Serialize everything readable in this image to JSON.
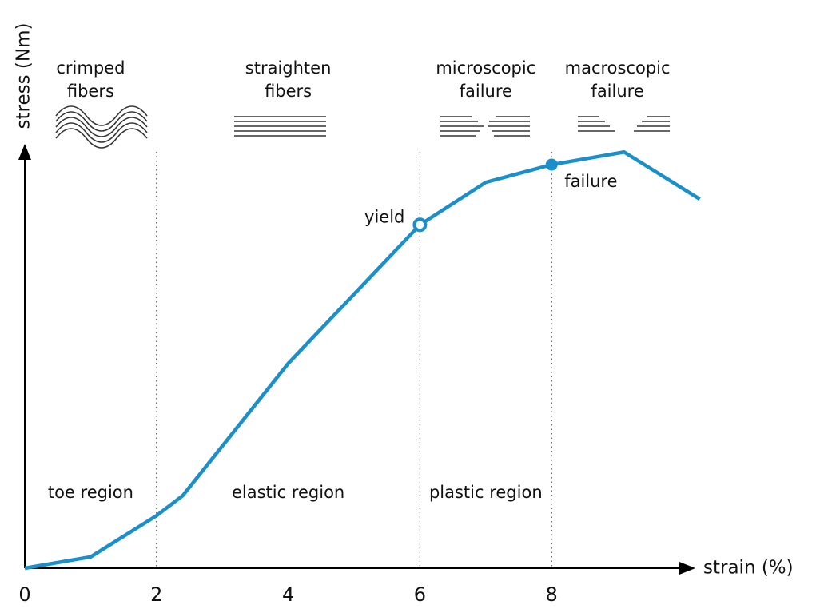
{
  "chart_data": {
    "type": "line",
    "x_label": "strain (%)",
    "y_label": "stress (Nm)",
    "x": [
      0,
      1,
      2,
      2.4,
      4,
      6,
      7,
      8,
      9.1,
      10.25
    ],
    "values": [
      0,
      2.7,
      12.5,
      17.3,
      48.7,
      81.7,
      91.8,
      96,
      99,
      87.8
    ],
    "color": "#1b8fca",
    "xlim": [
      0,
      10
    ],
    "ylim": [
      0,
      100
    ],
    "xticks": [
      0,
      2,
      4,
      6,
      8
    ],
    "boundaries": [
      2,
      6,
      8
    ],
    "regions": [
      "toe region",
      "elastic region",
      "plastic region"
    ],
    "phases": [
      [
        "crimped",
        "fibers"
      ],
      [
        "straighten",
        "fibers"
      ],
      [
        "microscopic",
        "failure"
      ],
      [
        "macroscopic",
        "failure"
      ]
    ],
    "points": [
      {
        "name": "yield",
        "x": 6,
        "y": 81.7
      },
      {
        "name": "failure",
        "x": 8,
        "y": 96
      }
    ]
  }
}
